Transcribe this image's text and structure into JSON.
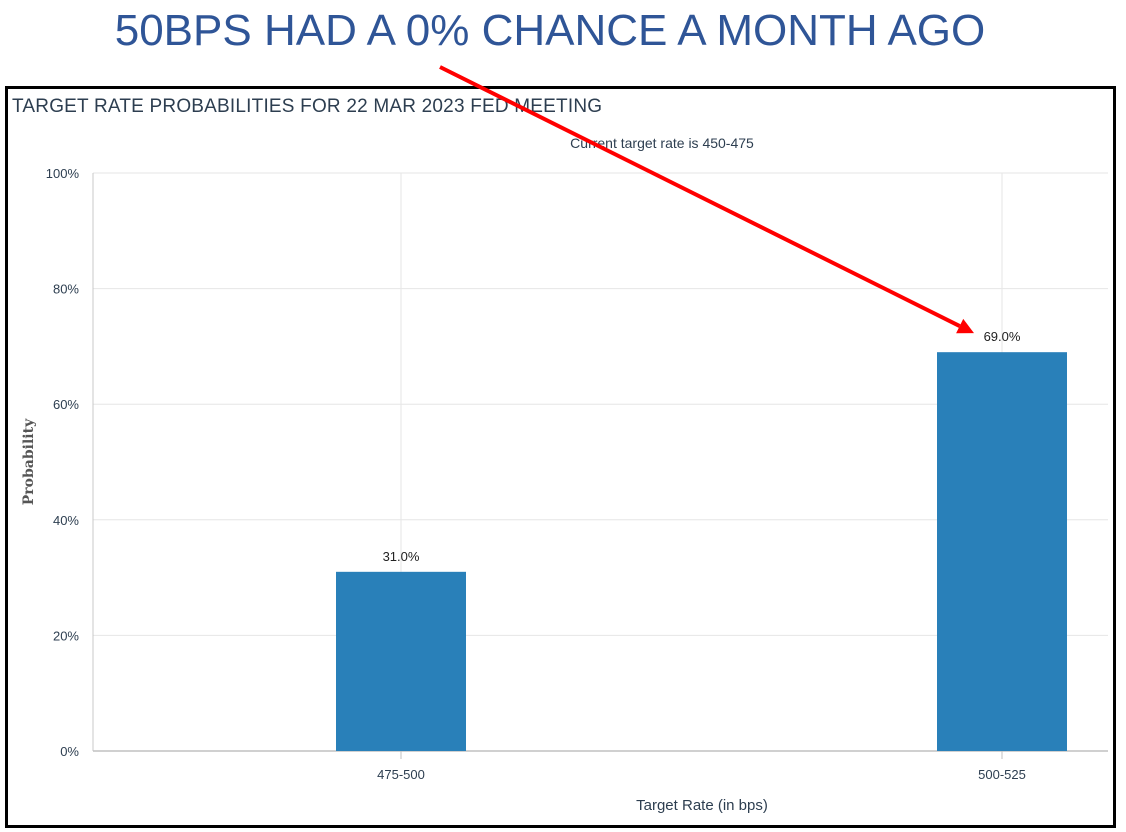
{
  "headline": "50BPS HAD A 0% CHANCE A MONTH AGO",
  "chart_data": {
    "type": "bar",
    "title": "TARGET RATE PROBABILITIES FOR 22 MAR 2023 FED MEETING",
    "subtitle": "Current target rate is 450-475",
    "categories": [
      "475-500",
      "500-525"
    ],
    "values": [
      31.0,
      69.0
    ],
    "value_labels": [
      "31.0%",
      "69.0%"
    ],
    "xlabel": "Target Rate (in bps)",
    "ylabel": "Probability",
    "ylim": [
      0,
      100
    ],
    "yticks": [
      0,
      20,
      40,
      60,
      80,
      100
    ],
    "ytick_labels": [
      "0%",
      "20%",
      "40%",
      "60%",
      "80%",
      "100%"
    ],
    "grid": true,
    "bar_color": "#2980b9"
  },
  "colors": {
    "headline": "#2f5597",
    "arrow": "#ff0000",
    "frame": "#000000",
    "grid": "#e6e6e6",
    "text": "#2d3e50"
  },
  "annotation": {
    "type": "arrow",
    "points_to_category": "500-525"
  }
}
